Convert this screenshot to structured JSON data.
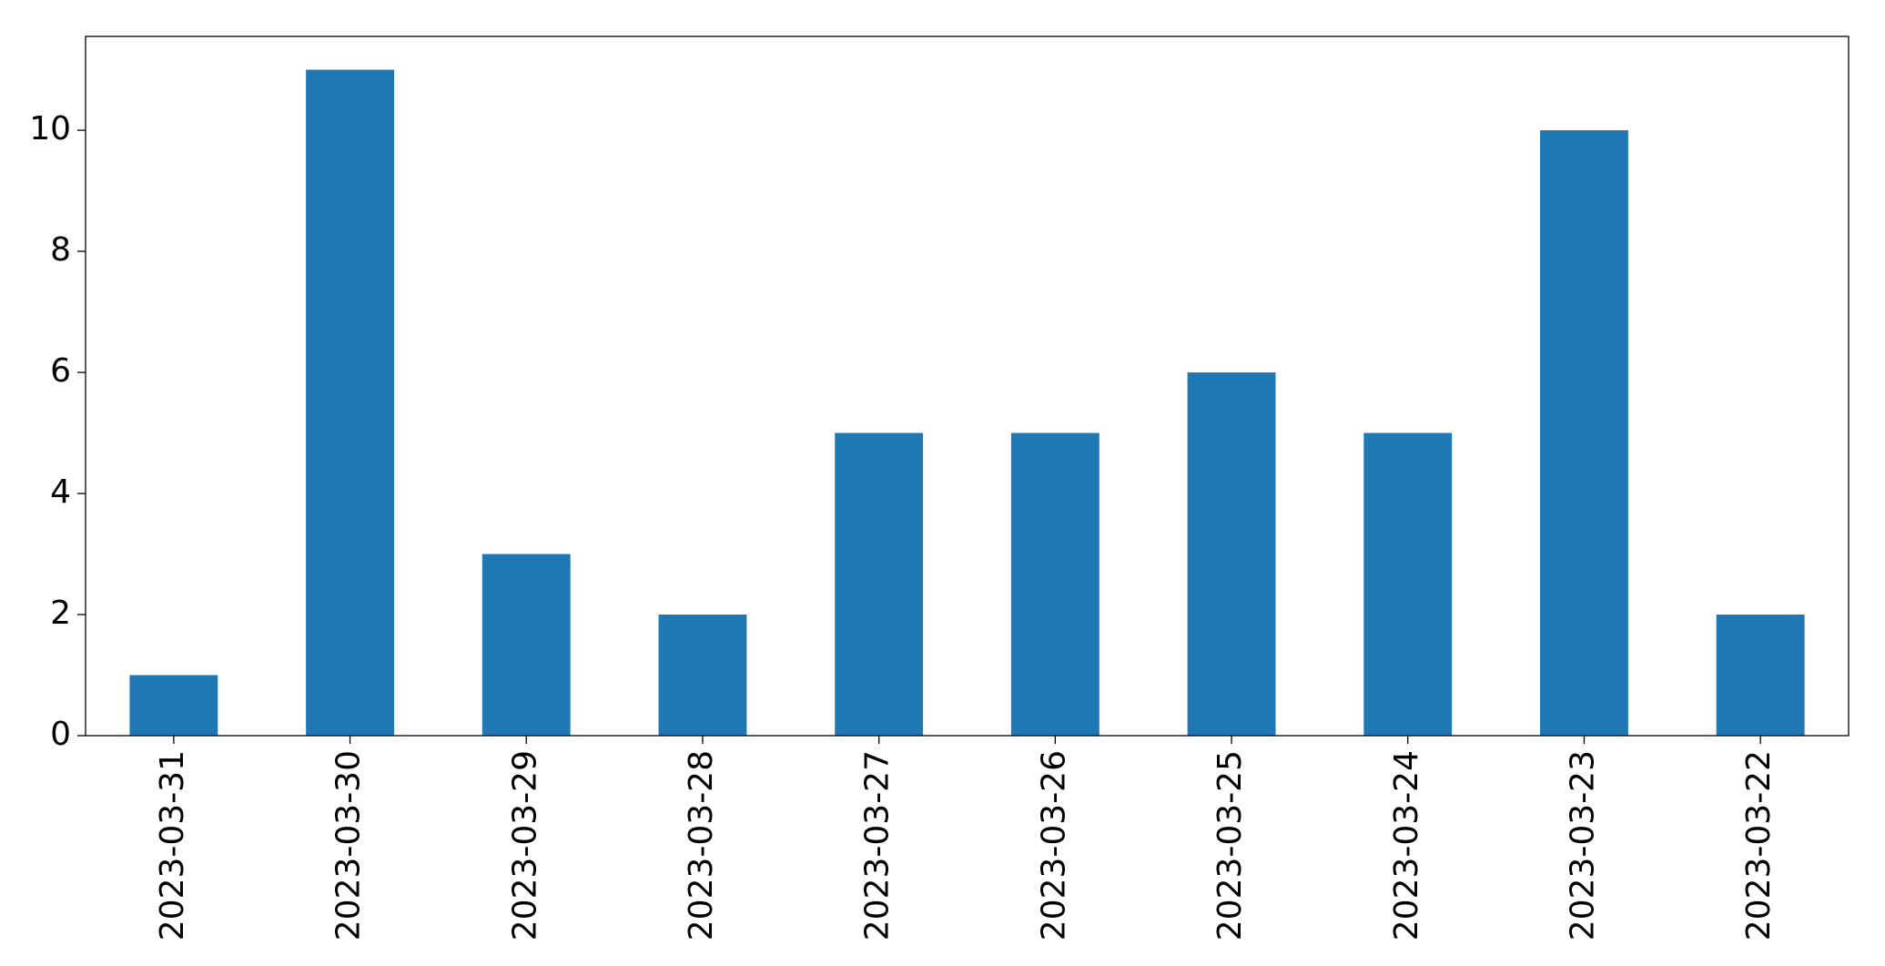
{
  "chart_data": {
    "type": "bar",
    "categories": [
      "2023-03-31",
      "2023-03-30",
      "2023-03-29",
      "2023-03-28",
      "2023-03-27",
      "2023-03-26",
      "2023-03-25",
      "2023-03-24",
      "2023-03-23",
      "2023-03-22"
    ],
    "values": [
      1,
      11,
      3,
      2,
      5,
      5,
      6,
      5,
      10,
      2
    ],
    "color": "#1f77b4",
    "ylim": [
      0,
      11.55
    ],
    "yticks": [
      0,
      2,
      4,
      6,
      8,
      10
    ],
    "grid": false
  }
}
